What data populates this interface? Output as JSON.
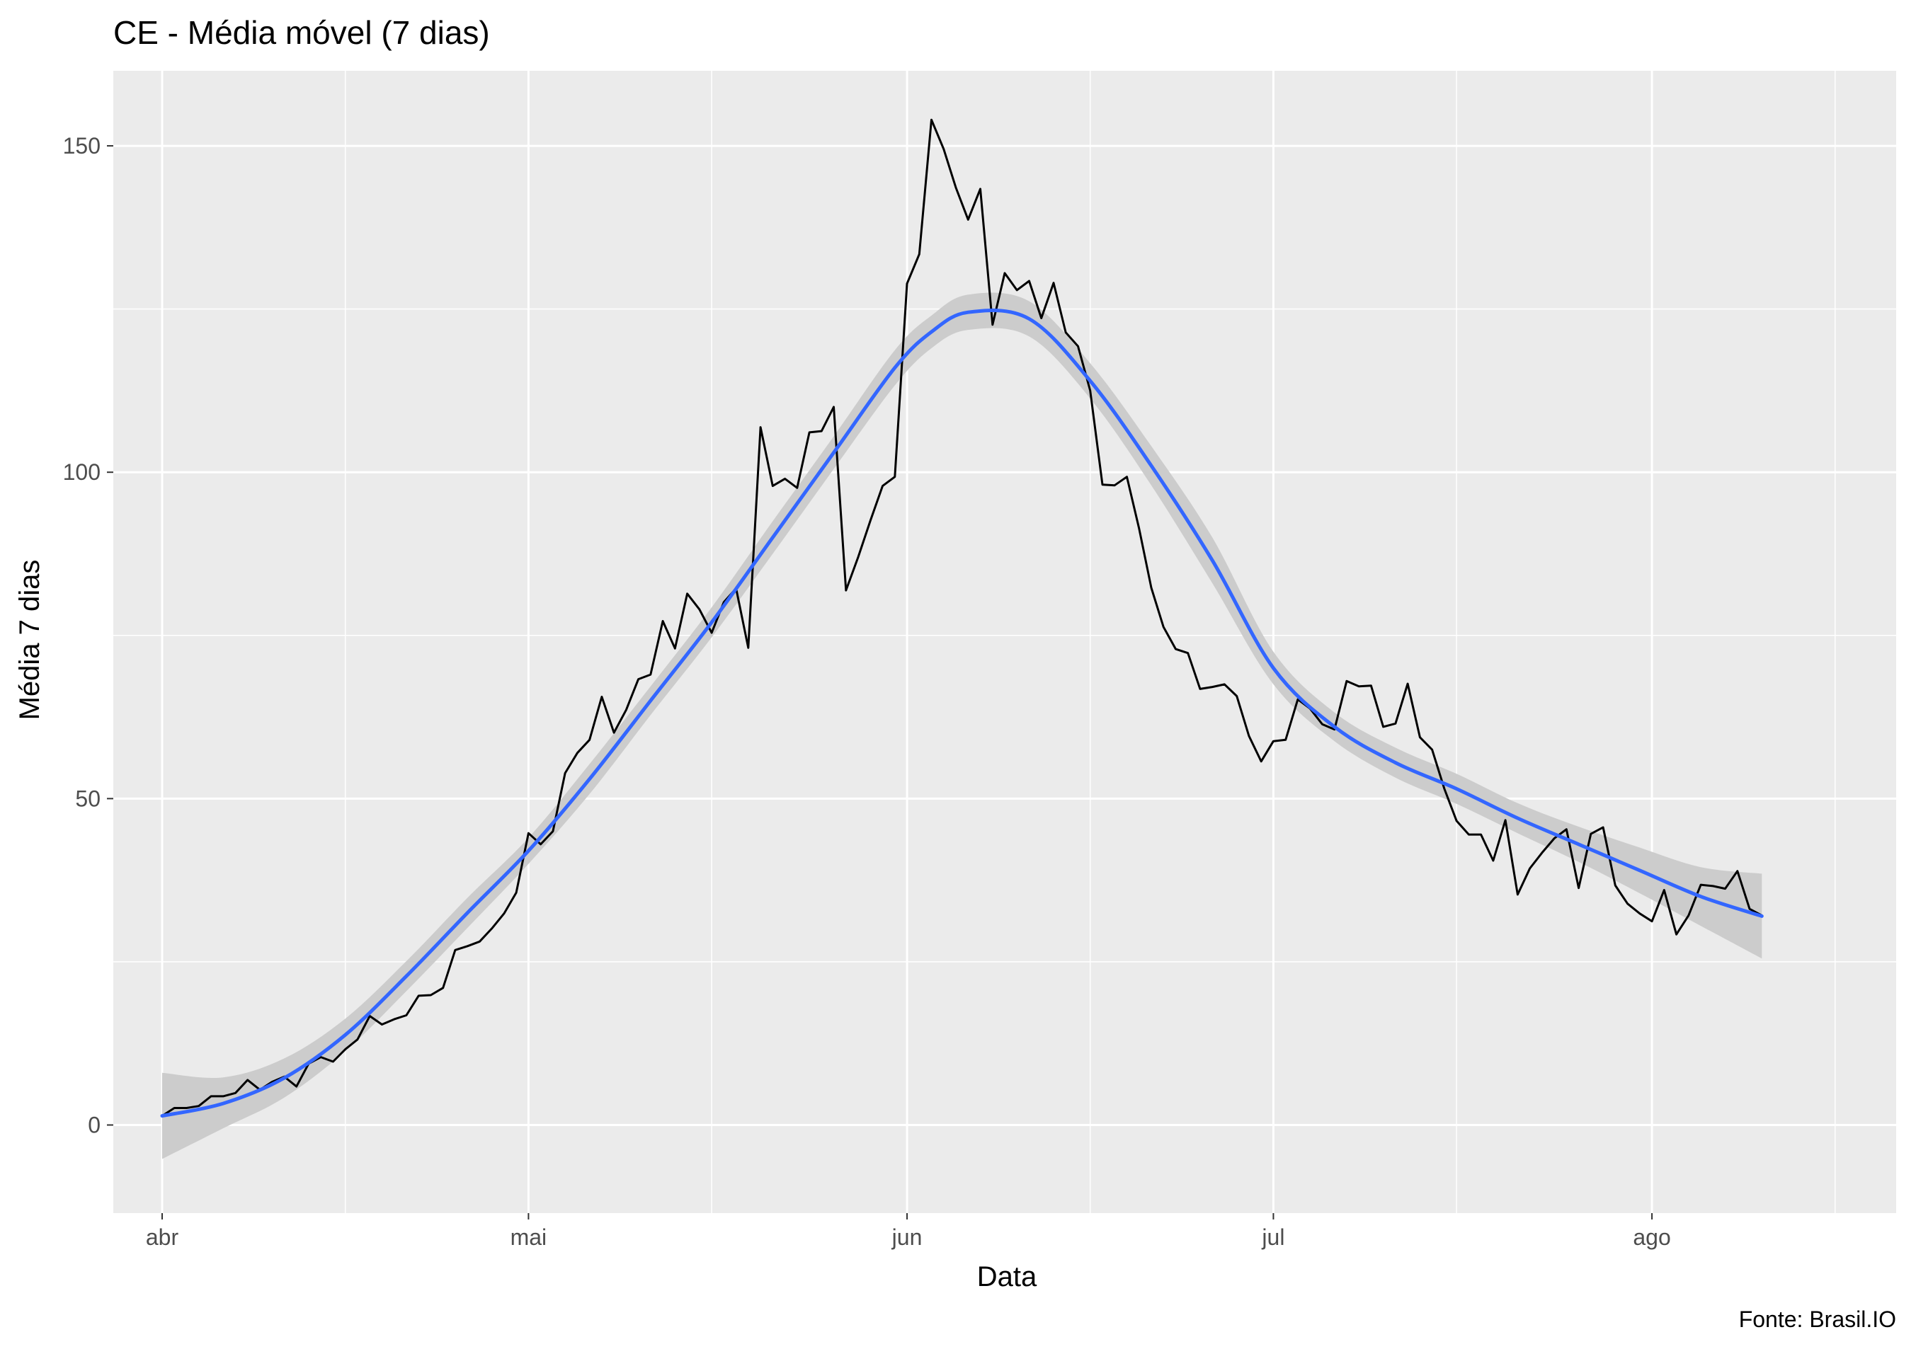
{
  "chart_data": {
    "type": "line",
    "title": "CE - Média móvel (7 dias)",
    "xlabel": "Data",
    "ylabel": "Média 7 dias",
    "caption": "Fonte: Brasil.IO",
    "xlim": [
      "2020-03-28",
      "2020-08-21"
    ],
    "ylim": [
      -13.5,
      161.5
    ],
    "x_ticks": [
      {
        "date": "2020-04-01",
        "label": "abr"
      },
      {
        "date": "2020-05-01",
        "label": "mai"
      },
      {
        "date": "2020-06-01",
        "label": "jun"
      },
      {
        "date": "2020-07-01",
        "label": "jul"
      },
      {
        "date": "2020-08-01",
        "label": "ago"
      }
    ],
    "x_minor_grid": [
      "2020-04-16",
      "2020-05-16",
      "2020-06-16",
      "2020-07-16",
      "2020-08-16"
    ],
    "y_ticks": [
      0,
      50,
      100,
      150
    ],
    "y_minor_grid": [
      25,
      75,
      125
    ],
    "grid": true,
    "colors": {
      "panel": "#ebebeb",
      "grid": "#ffffff",
      "series": "#000000",
      "smooth": "#3366ff",
      "ribbon": "#cccccc"
    },
    "series": [
      {
        "type": "line",
        "x": [
          "2020-04-01",
          "2020-04-02",
          "2020-04-03",
          "2020-04-04",
          "2020-04-05",
          "2020-04-06",
          "2020-04-07",
          "2020-04-08",
          "2020-04-09",
          "2020-04-10",
          "2020-04-11",
          "2020-04-12",
          "2020-04-13",
          "2020-04-14",
          "2020-04-15",
          "2020-04-16",
          "2020-04-17",
          "2020-04-18",
          "2020-04-19",
          "2020-04-20",
          "2020-04-21",
          "2020-04-22",
          "2020-04-23",
          "2020-04-24",
          "2020-04-25",
          "2020-04-26",
          "2020-04-27",
          "2020-04-28",
          "2020-04-29",
          "2020-04-30",
          "2020-05-01",
          "2020-05-02",
          "2020-05-03",
          "2020-05-04",
          "2020-05-05",
          "2020-05-06",
          "2020-05-07",
          "2020-05-08",
          "2020-05-09",
          "2020-05-10",
          "2020-05-11",
          "2020-05-12",
          "2020-05-13",
          "2020-05-14",
          "2020-05-15",
          "2020-05-16",
          "2020-05-17",
          "2020-05-18",
          "2020-05-19",
          "2020-05-20",
          "2020-05-21",
          "2020-05-22",
          "2020-05-23",
          "2020-05-24",
          "2020-05-25",
          "2020-05-26",
          "2020-05-27",
          "2020-05-28",
          "2020-05-29",
          "2020-05-30",
          "2020-05-31",
          "2020-06-01",
          "2020-06-02",
          "2020-06-03",
          "2020-06-04",
          "2020-06-05",
          "2020-06-06",
          "2020-06-07",
          "2020-06-08",
          "2020-06-09",
          "2020-06-10",
          "2020-06-11",
          "2020-06-12",
          "2020-06-13",
          "2020-06-14",
          "2020-06-15",
          "2020-06-16",
          "2020-06-17",
          "2020-06-18",
          "2020-06-19",
          "2020-06-20",
          "2020-06-21",
          "2020-06-22",
          "2020-06-23",
          "2020-06-24",
          "2020-06-25",
          "2020-06-26",
          "2020-06-27",
          "2020-06-28",
          "2020-06-29",
          "2020-06-30",
          "2020-07-01",
          "2020-07-02",
          "2020-07-03",
          "2020-07-04",
          "2020-07-05",
          "2020-07-06",
          "2020-07-07",
          "2020-07-08",
          "2020-07-09",
          "2020-07-10",
          "2020-07-11",
          "2020-07-12",
          "2020-07-13",
          "2020-07-14",
          "2020-07-15",
          "2020-07-16",
          "2020-07-17",
          "2020-07-18",
          "2020-07-19",
          "2020-07-20",
          "2020-07-21",
          "2020-07-22",
          "2020-07-23",
          "2020-07-24",
          "2020-07-25",
          "2020-07-26",
          "2020-07-27",
          "2020-07-28",
          "2020-07-29",
          "2020-07-30",
          "2020-07-31",
          "2020-08-01",
          "2020-08-02",
          "2020-08-03",
          "2020-08-04",
          "2020-08-05",
          "2020-08-06",
          "2020-08-07",
          "2020-08-08",
          "2020-08-09",
          "2020-08-10"
        ],
        "y": [
          1.4,
          2.6,
          2.6,
          2.9,
          4.4,
          4.4,
          4.9,
          6.9,
          5.4,
          6.6,
          7.4,
          5.9,
          9.4,
          10.4,
          9.7,
          11.6,
          13.1,
          16.7,
          15.4,
          16.2,
          16.8,
          19.8,
          19.9,
          21.0,
          26.8,
          27.4,
          28.1,
          30.1,
          32.4,
          35.6,
          44.7,
          43.0,
          45.0,
          53.9,
          57.0,
          59.0,
          65.6,
          60.1,
          63.6,
          68.3,
          69.0,
          77.2,
          73.0,
          81.4,
          79.0,
          75.4,
          80.1,
          82.2,
          73.1,
          106.9,
          97.9,
          99.0,
          97.6,
          106.1,
          106.3,
          110.0,
          81.9,
          87.0,
          92.6,
          97.9,
          99.3,
          128.9,
          133.4,
          154.0,
          149.5,
          143.6,
          138.7,
          143.4,
          122.6,
          130.5,
          127.9,
          129.3,
          123.6,
          129.0,
          121.4,
          119.3,
          112.5,
          98.1,
          98.0,
          99.3,
          91.4,
          82.3,
          76.3,
          72.9,
          72.3,
          66.8,
          67.1,
          67.5,
          65.7,
          59.6,
          55.7,
          58.8,
          59.0,
          65.2,
          63.8,
          61.4,
          60.6,
          68.0,
          67.2,
          67.3,
          61.0,
          61.5,
          67.6,
          59.4,
          57.5,
          51.5,
          46.6,
          44.5,
          44.5,
          40.5,
          46.7,
          35.3,
          39.3,
          41.7,
          43.9,
          45.3,
          36.3,
          44.6,
          45.6,
          36.7,
          33.9,
          32.4,
          31.2,
          36.0,
          29.2,
          32.1,
          36.8,
          36.6,
          36.2,
          38.9,
          33.1,
          32.1
        ]
      },
      {
        "type": "smooth",
        "x": [
          "2020-04-01",
          "2020-04-06",
          "2020-04-11",
          "2020-04-16",
          "2020-04-21",
          "2020-04-26",
          "2020-05-01",
          "2020-05-06",
          "2020-05-11",
          "2020-05-16",
          "2020-05-21",
          "2020-05-26",
          "2020-05-31",
          "2020-06-03",
          "2020-06-06",
          "2020-06-11",
          "2020-06-16",
          "2020-06-21",
          "2020-06-26",
          "2020-07-01",
          "2020-07-06",
          "2020-07-11",
          "2020-07-16",
          "2020-07-21",
          "2020-07-26",
          "2020-07-31",
          "2020-08-05",
          "2020-08-10"
        ],
        "y": [
          1.4,
          3.3,
          7.2,
          13.8,
          22.8,
          32.5,
          42.0,
          53.0,
          65.0,
          77.0,
          90.0,
          103.0,
          116.0,
          121.5,
          124.5,
          123.5,
          114.0,
          101.0,
          86.5,
          70.0,
          61.0,
          55.5,
          51.5,
          47.0,
          43.0,
          39.0,
          35.0,
          32.0
        ],
        "lower": [
          -5.2,
          -0.5,
          4.2,
          11.3,
          20.5,
          30.2,
          40.0,
          50.7,
          62.8,
          74.7,
          87.5,
          100.5,
          113.3,
          119.0,
          121.8,
          120.8,
          111.3,
          98.0,
          83.0,
          67.5,
          58.8,
          53.2,
          49.2,
          44.7,
          40.3,
          35.5,
          30.5,
          25.5
        ],
        "upper": [
          8.0,
          7.3,
          10.2,
          16.3,
          25.1,
          34.8,
          44.0,
          55.3,
          67.2,
          79.3,
          92.5,
          105.5,
          118.7,
          124.0,
          127.2,
          126.2,
          116.7,
          104.0,
          90.0,
          72.5,
          63.2,
          57.8,
          53.8,
          49.3,
          45.7,
          42.5,
          39.5,
          38.5
        ]
      }
    ]
  }
}
